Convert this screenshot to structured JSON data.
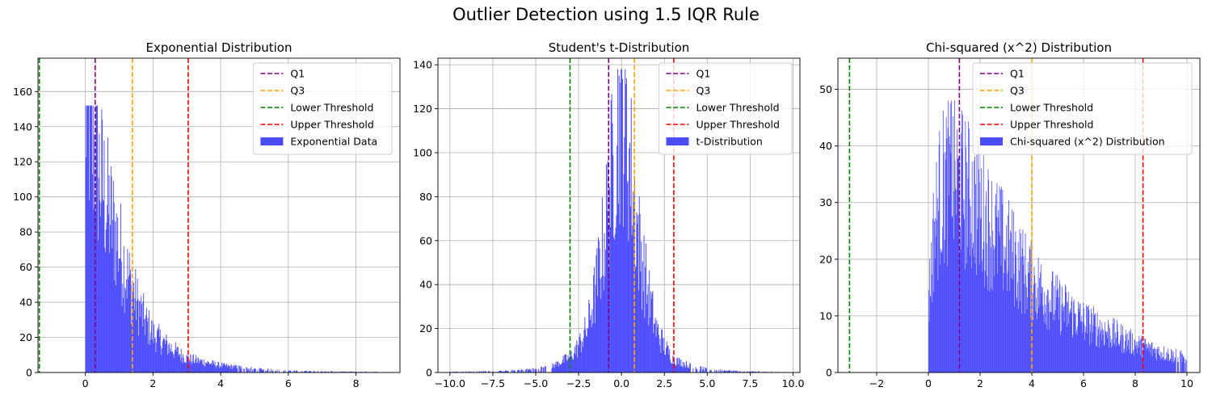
{
  "figure": {
    "title": "Outlier Detection using 1.5 IQR Rule",
    "colors": {
      "bars": "#4c4cff",
      "q1": "#800080",
      "q3": "#ffa500",
      "lower": "#008000",
      "upper": "#ff0000"
    }
  },
  "chart_data": [
    {
      "type": "bar",
      "title": "Exponential Distribution",
      "xlabel": "",
      "ylabel": "",
      "xlim": [
        -1.4,
        9.3
      ],
      "ylim": [
        0,
        179
      ],
      "xticks": [
        0,
        2,
        4,
        6,
        8
      ],
      "yticks": [
        0,
        20,
        40,
        60,
        80,
        100,
        120,
        140,
        160
      ],
      "grid": true,
      "legend_position": "top-right",
      "series": [
        {
          "name": "Q1",
          "kind": "vline",
          "x": 0.29
        },
        {
          "name": "Q3",
          "kind": "vline",
          "x": 1.39
        },
        {
          "name": "Lower Threshold",
          "kind": "vline",
          "x": -1.36
        },
        {
          "name": "Upper Threshold",
          "kind": "vline",
          "x": 3.04
        },
        {
          "name": "Exponential Data",
          "kind": "histogram",
          "bin_start": 0,
          "bin_end": 9.1,
          "envelope": [
            [
              0,
              152
            ],
            [
              0.1,
              140
            ],
            [
              0.2,
              133
            ],
            [
              0.3,
              123
            ],
            [
              0.4,
              113
            ],
            [
              0.5,
              108
            ],
            [
              0.6,
              98
            ],
            [
              0.8,
              85
            ],
            [
              1.0,
              72
            ],
            [
              1.2,
              58
            ],
            [
              1.4,
              46
            ],
            [
              1.6,
              36
            ],
            [
              1.8,
              28
            ],
            [
              2.0,
              22
            ],
            [
              2.3,
              17
            ],
            [
              2.6,
              13
            ],
            [
              3.0,
              8
            ],
            [
              3.5,
              6
            ],
            [
              4.0,
              4
            ],
            [
              5.0,
              2
            ],
            [
              6.0,
              1
            ],
            [
              7.0,
              0.6
            ],
            [
              8.0,
              0.4
            ],
            [
              9.1,
              0.2
            ]
          ],
          "max_count": 152
        }
      ]
    },
    {
      "type": "bar",
      "title": "Student's t-Distribution",
      "xlabel": "",
      "ylabel": "",
      "xlim": [
        -10.7,
        10.4
      ],
      "ylim": [
        0,
        143
      ],
      "xticks": [
        -10.0,
        -7.5,
        -5.0,
        -2.5,
        0.0,
        2.5,
        5.0,
        7.5,
        10.0
      ],
      "yticks": [
        0,
        20,
        40,
        60,
        80,
        100,
        120,
        140
      ],
      "grid": true,
      "legend_position": "top-right",
      "series": [
        {
          "name": "Q1",
          "kind": "vline",
          "x": -0.75
        },
        {
          "name": "Q3",
          "kind": "vline",
          "x": 0.75
        },
        {
          "name": "Lower Threshold",
          "kind": "vline",
          "x": -3.0
        },
        {
          "name": "Upper Threshold",
          "kind": "vline",
          "x": 3.05
        },
        {
          "name": "t-Distribution",
          "kind": "histogram",
          "bin_start": -10,
          "bin_end": 9.6,
          "envelope": [
            [
              -10,
              0.3
            ],
            [
              -7,
              0.6
            ],
            [
              -5,
              1.5
            ],
            [
              -4,
              3
            ],
            [
              -3,
              7
            ],
            [
              -2.5,
              12
            ],
            [
              -2,
              20
            ],
            [
              -1.5,
              38
            ],
            [
              -1,
              62
            ],
            [
              -0.5,
              95
            ],
            [
              -0.2,
              115
            ],
            [
              0,
              122
            ],
            [
              0.2,
              115
            ],
            [
              0.5,
              95
            ],
            [
              1,
              60
            ],
            [
              1.5,
              38
            ],
            [
              2,
              20
            ],
            [
              2.5,
              12
            ],
            [
              3,
              6
            ],
            [
              4,
              3
            ],
            [
              5,
              1.5
            ],
            [
              7,
              0.5
            ],
            [
              9.6,
              0.2
            ]
          ],
          "max_count": 138
        }
      ]
    },
    {
      "type": "bar",
      "title": "Chi-squared (x^2) Distribution",
      "xlabel": "",
      "ylabel": "",
      "xlim": [
        -3.5,
        10.5
      ],
      "ylim": [
        0,
        55.5
      ],
      "xticks": [
        -2,
        0,
        2,
        4,
        6,
        8,
        10
      ],
      "yticks": [
        0,
        10,
        20,
        30,
        40,
        50
      ],
      "grid": true,
      "legend_position": "top-right",
      "series": [
        {
          "name": "Q1",
          "kind": "vline",
          "x": 1.2
        },
        {
          "name": "Q3",
          "kind": "vline",
          "x": 4.0
        },
        {
          "name": "Lower Threshold",
          "kind": "vline",
          "x": -3.05
        },
        {
          "name": "Upper Threshold",
          "kind": "vline",
          "x": 8.3
        },
        {
          "name": "Chi-squared (x^2) Distribution",
          "kind": "histogram",
          "bin_start": 0,
          "bin_end": 10,
          "envelope": [
            [
              0,
              12
            ],
            [
              0.2,
              24
            ],
            [
              0.4,
              30
            ],
            [
              0.6,
              33
            ],
            [
              0.9,
              34
            ],
            [
              1.2,
              33
            ],
            [
              1.6,
              31
            ],
            [
              2.0,
              28
            ],
            [
              2.5,
              25
            ],
            [
              3.0,
              22
            ],
            [
              3.5,
              19
            ],
            [
              4.0,
              16
            ],
            [
              4.5,
              14
            ],
            [
              5.0,
              12
            ],
            [
              6.0,
              9
            ],
            [
              7.0,
              7
            ],
            [
              8.0,
              5
            ],
            [
              9.0,
              3.5
            ],
            [
              10,
              2.5
            ]
          ],
          "max_count": 48
        }
      ]
    }
  ]
}
